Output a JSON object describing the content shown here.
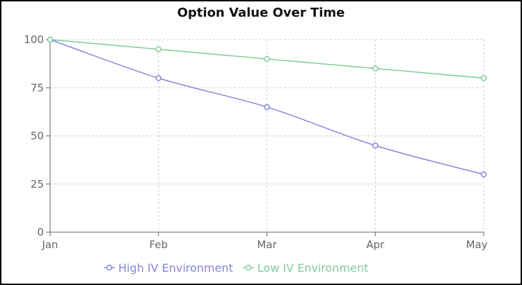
{
  "chart_data": {
    "type": "line",
    "title": "Option Value Over Time",
    "categories": [
      "Jan",
      "Feb",
      "Mar",
      "Apr",
      "May"
    ],
    "ylim": [
      0,
      100
    ],
    "yticks": [
      0,
      25,
      50,
      75,
      100
    ],
    "grid": true,
    "legend": "bottom",
    "series": [
      {
        "name": "High IV Environment",
        "values": [
          100,
          80,
          65,
          45,
          30
        ],
        "color": "#8884d8"
      },
      {
        "name": "Low IV Environment",
        "values": [
          100,
          95,
          90,
          85,
          80
        ],
        "color": "#82ca9d"
      }
    ]
  }
}
